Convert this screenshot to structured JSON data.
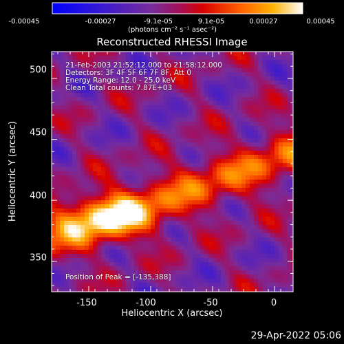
{
  "chart_data": {
    "type": "heatmap",
    "title": "Reconstructed RHESSI Image",
    "xlabel": "Heliocentric X (arcsec)",
    "ylabel": "Heliocentric Y (arcsec)",
    "xlim": [
      -180,
      15
    ],
    "ylim": [
      325,
      522
    ],
    "x_ticks": [
      "-150",
      "-100",
      "-50",
      "0"
    ],
    "x_tick_values": [
      -150,
      -100,
      -50,
      0
    ],
    "y_ticks": [
      "350",
      "400",
      "450",
      "500"
    ],
    "y_tick_values": [
      350,
      400,
      450,
      500
    ],
    "colorbar": {
      "ticks": [
        "-0.00045",
        "-0.00027",
        "-9.1e-05",
        "9.1e-05",
        "0.00027",
        "0.00045"
      ],
      "tick_values": [
        -0.00045,
        -0.00027,
        -9.1e-05,
        9.1e-05,
        0.00027,
        0.00045
      ],
      "range": [
        -0.00045,
        0.00045
      ],
      "unit_label": "(photons cm⁻² s⁻¹ asec⁻²)"
    },
    "annotations": {
      "time_range": "21-Feb-2003 21:52:12.000 to 21:58:12.000",
      "detectors": "Detectors: 3F 4F 5F 6F 7F 8F, Att 0",
      "energy_range": "Energy Range: 12.0 - 25.0 keV",
      "clean_counts": "Clean    Total counts: 7.87E+03",
      "peak_position": "Position of Peak = [-135,388]"
    },
    "peak": {
      "x": -135,
      "y": 388
    },
    "grid": false
  },
  "footer": {
    "timestamp": "29-Apr-2022 05:06"
  }
}
